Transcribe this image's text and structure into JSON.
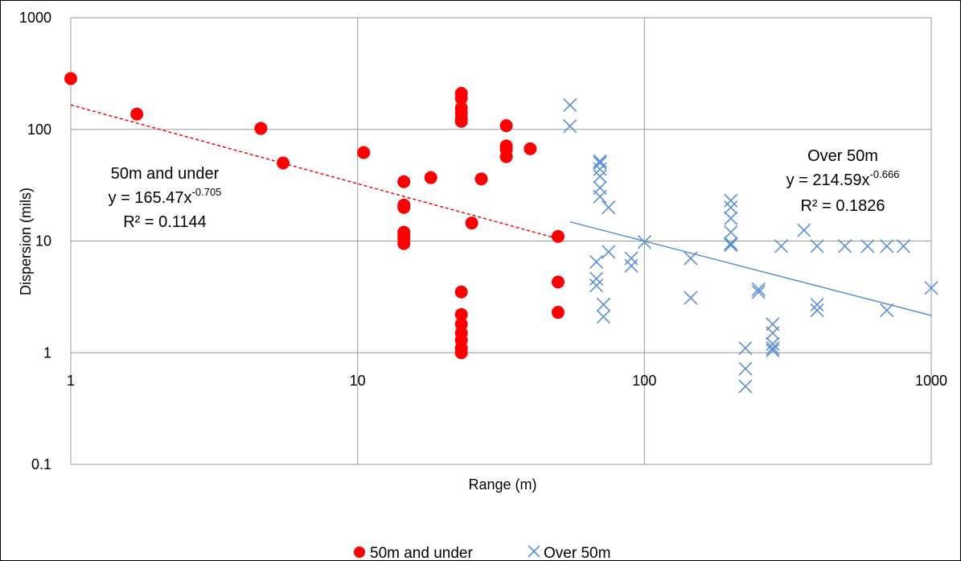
{
  "chart_data": {
    "type": "scatter",
    "title": "",
    "xlabel": "Range (m)",
    "ylabel": "Dispersion (mils)",
    "xscale": "log",
    "yscale": "log",
    "xlim": [
      1,
      1000
    ],
    "ylim": [
      0.1,
      1000
    ],
    "xticks": [
      "1",
      "10",
      "100",
      "1000"
    ],
    "yticks": [
      "0.1",
      "1",
      "10",
      "100",
      "1000"
    ],
    "grid": true,
    "legend_position": "bottom",
    "series": [
      {
        "name": "50m and under",
        "marker": "circle",
        "color": "#FF0000",
        "points": [
          [
            1,
            285
          ],
          [
            1.7,
            137
          ],
          [
            4.6,
            102
          ],
          [
            5.5,
            50
          ],
          [
            10.5,
            62
          ],
          [
            14.5,
            34
          ],
          [
            14.5,
            21
          ],
          [
            14.5,
            20
          ],
          [
            14.5,
            12
          ],
          [
            14.5,
            11
          ],
          [
            14.5,
            10.5
          ],
          [
            14.5,
            9.5
          ],
          [
            18,
            37
          ],
          [
            23,
            210
          ],
          [
            23,
            190
          ],
          [
            23,
            155
          ],
          [
            23,
            140
          ],
          [
            23,
            125
          ],
          [
            23,
            118
          ],
          [
            23,
            3.5
          ],
          [
            23,
            2.2
          ],
          [
            23,
            1.8
          ],
          [
            23,
            1.5
          ],
          [
            23,
            1.3
          ],
          [
            23,
            1.1
          ],
          [
            23,
            1.0
          ],
          [
            25,
            14.5
          ],
          [
            27,
            36
          ],
          [
            33,
            108
          ],
          [
            33,
            71
          ],
          [
            33,
            66
          ],
          [
            33,
            57
          ],
          [
            40,
            67
          ],
          [
            50,
            11
          ],
          [
            50,
            4.3
          ],
          [
            50,
            2.3
          ]
        ]
      },
      {
        "name": "Over 50m",
        "marker": "x",
        "color": "#5B8FD4",
        "points": [
          [
            55,
            165
          ],
          [
            55,
            107
          ],
          [
            68,
            6.5
          ],
          [
            68,
            4.6
          ],
          [
            68,
            4.0
          ],
          [
            70,
            52
          ],
          [
            70,
            50
          ],
          [
            70,
            44
          ],
          [
            70,
            38
          ],
          [
            70,
            30
          ],
          [
            70,
            25
          ],
          [
            72,
            2.7
          ],
          [
            72,
            2.1
          ],
          [
            75,
            20
          ],
          [
            75,
            8
          ],
          [
            90,
            7.0
          ],
          [
            90,
            6.0
          ],
          [
            100,
            9.8
          ],
          [
            145,
            7.0
          ],
          [
            145,
            3.1
          ],
          [
            200,
            23
          ],
          [
            200,
            20
          ],
          [
            200,
            16
          ],
          [
            200,
            12
          ],
          [
            200,
            9.5
          ],
          [
            200,
            9.2
          ],
          [
            225,
            1.1
          ],
          [
            225,
            0.72
          ],
          [
            225,
            0.5
          ],
          [
            250,
            3.7
          ],
          [
            250,
            3.5
          ],
          [
            280,
            1.8
          ],
          [
            280,
            1.5
          ],
          [
            280,
            1.2
          ],
          [
            280,
            1.1
          ],
          [
            280,
            1.05
          ],
          [
            300,
            9.0
          ],
          [
            360,
            12.5
          ],
          [
            400,
            9.0
          ],
          [
            400,
            2.7
          ],
          [
            400,
            2.4
          ],
          [
            500,
            9.0
          ],
          [
            600,
            9.0
          ],
          [
            700,
            9.0
          ],
          [
            700,
            2.4
          ],
          [
            800,
            9.0
          ],
          [
            1000,
            3.8
          ]
        ]
      }
    ],
    "trendlines": [
      {
        "series": "50m and under",
        "type": "power",
        "coef": 165.47,
        "exponent": -0.705,
        "r2": 0.1144,
        "x_range": [
          1,
          50
        ],
        "style": "dashed",
        "color": "#FF0000"
      },
      {
        "series": "Over 50m",
        "type": "power",
        "coef": 214.59,
        "exponent": -0.666,
        "r2": 0.1826,
        "x_range": [
          55,
          1000
        ],
        "style": "solid",
        "color": "#5B8FD4"
      }
    ],
    "annotations": [
      {
        "id": "under",
        "label": "50m and under",
        "equation_base": "y = 165.47x",
        "equation_exp": "-0.705",
        "r2_text": "R² = 0.1144"
      },
      {
        "id": "over",
        "label": "Over 50m",
        "equation_base": "y = 214.59x",
        "equation_exp": "-0.666",
        "r2_text": "R² = 0.1826"
      }
    ]
  }
}
